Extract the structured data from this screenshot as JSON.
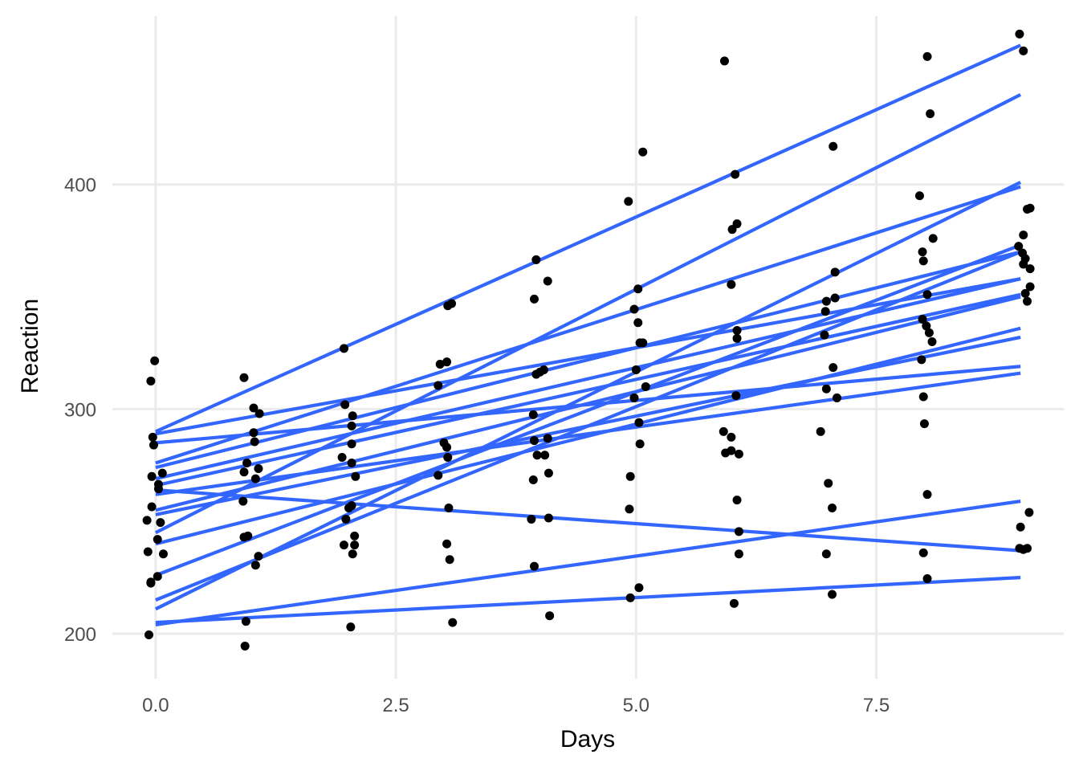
{
  "chart_data": {
    "type": "scatter",
    "xlabel": "Days",
    "ylabel": "Reaction",
    "xlim": [
      -0.45,
      9.45
    ],
    "ylim": [
      180,
      475
    ],
    "x_ticks": [
      0.0,
      2.5,
      5.0,
      7.5
    ],
    "x_tick_labels": [
      "0.0",
      "2.5",
      "5.0",
      "7.5"
    ],
    "y_ticks": [
      200,
      300,
      400
    ],
    "y_tick_labels": [
      "200",
      "300",
      "400"
    ],
    "grid": true,
    "legend": "none",
    "colors": {
      "points": "#000000",
      "lines": "#3366ff",
      "grid": "#ebebeb"
    },
    "points": [
      {
        "x": -0.07,
        "y": 199.5
      },
      {
        "x": -0.08,
        "y": 236.5
      },
      {
        "x": -0.05,
        "y": 223.0
      },
      {
        "x": -0.05,
        "y": 222.5
      },
      {
        "x": 0.02,
        "y": 225.5
      },
      {
        "x": -0.09,
        "y": 250.5
      },
      {
        "x": 0.05,
        "y": 249.5
      },
      {
        "x": 0.08,
        "y": 235.5
      },
      {
        "x": -0.04,
        "y": 256.5
      },
      {
        "x": 0.02,
        "y": 242.0
      },
      {
        "x": 0.03,
        "y": 264.5
      },
      {
        "x": 0.03,
        "y": 266.5
      },
      {
        "x": -0.04,
        "y": 270.0
      },
      {
        "x": 0.07,
        "y": 271.5
      },
      {
        "x": -0.03,
        "y": 287.5
      },
      {
        "x": -0.02,
        "y": 284.0
      },
      {
        "x": -0.05,
        "y": 312.5
      },
      {
        "x": -0.01,
        "y": 321.5
      },
      {
        "x": 0.93,
        "y": 194.5
      },
      {
        "x": 0.94,
        "y": 205.5
      },
      {
        "x": 1.04,
        "y": 230.5
      },
      {
        "x": 1.07,
        "y": 234.5
      },
      {
        "x": 0.92,
        "y": 243.0
      },
      {
        "x": 0.96,
        "y": 243.5
      },
      {
        "x": 0.91,
        "y": 259.0
      },
      {
        "x": 1.04,
        "y": 269.0
      },
      {
        "x": 0.92,
        "y": 272.0
      },
      {
        "x": 1.07,
        "y": 273.5
      },
      {
        "x": 0.95,
        "y": 276.0
      },
      {
        "x": 1.03,
        "y": 285.5
      },
      {
        "x": 1.02,
        "y": 289.5
      },
      {
        "x": 1.02,
        "y": 300.5
      },
      {
        "x": 1.08,
        "y": 298.0
      },
      {
        "x": 0.92,
        "y": 314.0
      },
      {
        "x": 2.03,
        "y": 203.0
      },
      {
        "x": 1.96,
        "y": 239.5
      },
      {
        "x": 2.05,
        "y": 235.5
      },
      {
        "x": 2.07,
        "y": 239.5
      },
      {
        "x": 2.07,
        "y": 243.5
      },
      {
        "x": 1.98,
        "y": 251.0
      },
      {
        "x": 2.01,
        "y": 256.0
      },
      {
        "x": 2.04,
        "y": 257.0
      },
      {
        "x": 2.08,
        "y": 270.0
      },
      {
        "x": 2.04,
        "y": 276.0
      },
      {
        "x": 1.94,
        "y": 278.5
      },
      {
        "x": 2.04,
        "y": 284.5
      },
      {
        "x": 2.04,
        "y": 292.5
      },
      {
        "x": 2.05,
        "y": 297.0
      },
      {
        "x": 1.97,
        "y": 302.0
      },
      {
        "x": 1.96,
        "y": 327.0
      },
      {
        "x": 3.09,
        "y": 205.0
      },
      {
        "x": 3.06,
        "y": 233.0
      },
      {
        "x": 3.03,
        "y": 240.0
      },
      {
        "x": 3.05,
        "y": 256.0
      },
      {
        "x": 2.94,
        "y": 270.5
      },
      {
        "x": 3.04,
        "y": 278.5
      },
      {
        "x": 3.03,
        "y": 283.0
      },
      {
        "x": 3.0,
        "y": 285.0
      },
      {
        "x": 2.94,
        "y": 310.5
      },
      {
        "x": 2.96,
        "y": 320.0
      },
      {
        "x": 3.03,
        "y": 321.0
      },
      {
        "x": 3.04,
        "y": 346.0
      },
      {
        "x": 3.08,
        "y": 347.0
      },
      {
        "x": 4.1,
        "y": 208.0
      },
      {
        "x": 3.94,
        "y": 230.0
      },
      {
        "x": 3.91,
        "y": 251.0
      },
      {
        "x": 4.09,
        "y": 251.5
      },
      {
        "x": 3.93,
        "y": 268.5
      },
      {
        "x": 4.09,
        "y": 271.5
      },
      {
        "x": 3.97,
        "y": 279.5
      },
      {
        "x": 4.05,
        "y": 279.5
      },
      {
        "x": 3.94,
        "y": 286.0
      },
      {
        "x": 4.08,
        "y": 287.0
      },
      {
        "x": 3.93,
        "y": 297.5
      },
      {
        "x": 3.96,
        "y": 315.5
      },
      {
        "x": 4.0,
        "y": 316.5
      },
      {
        "x": 4.04,
        "y": 317.5
      },
      {
        "x": 3.94,
        "y": 349.0
      },
      {
        "x": 4.08,
        "y": 357.0
      },
      {
        "x": 3.96,
        "y": 366.5
      },
      {
        "x": 4.94,
        "y": 216.0
      },
      {
        "x": 5.03,
        "y": 220.5
      },
      {
        "x": 4.93,
        "y": 255.5
      },
      {
        "x": 4.94,
        "y": 270.0
      },
      {
        "x": 5.04,
        "y": 284.5
      },
      {
        "x": 5.03,
        "y": 294.0
      },
      {
        "x": 4.98,
        "y": 305.0
      },
      {
        "x": 5.1,
        "y": 310.0
      },
      {
        "x": 5.0,
        "y": 317.5
      },
      {
        "x": 5.04,
        "y": 329.5
      },
      {
        "x": 5.07,
        "y": 329.5
      },
      {
        "x": 5.02,
        "y": 338.5
      },
      {
        "x": 4.98,
        "y": 344.5
      },
      {
        "x": 5.02,
        "y": 353.5
      },
      {
        "x": 4.92,
        "y": 392.5
      },
      {
        "x": 5.07,
        "y": 414.5
      },
      {
        "x": 6.02,
        "y": 213.5
      },
      {
        "x": 6.07,
        "y": 235.5
      },
      {
        "x": 6.07,
        "y": 245.5
      },
      {
        "x": 6.05,
        "y": 259.5
      },
      {
        "x": 6.07,
        "y": 280.0
      },
      {
        "x": 5.93,
        "y": 280.5
      },
      {
        "x": 5.99,
        "y": 281.5
      },
      {
        "x": 5.99,
        "y": 287.5
      },
      {
        "x": 5.91,
        "y": 290.0
      },
      {
        "x": 6.04,
        "y": 306.0
      },
      {
        "x": 6.05,
        "y": 331.5
      },
      {
        "x": 6.05,
        "y": 335.0
      },
      {
        "x": 5.99,
        "y": 355.5
      },
      {
        "x": 6.0,
        "y": 380.0
      },
      {
        "x": 6.05,
        "y": 382.5
      },
      {
        "x": 6.03,
        "y": 404.5
      },
      {
        "x": 5.92,
        "y": 455.0
      },
      {
        "x": 7.04,
        "y": 217.5
      },
      {
        "x": 6.98,
        "y": 235.5
      },
      {
        "x": 7.04,
        "y": 256.0
      },
      {
        "x": 7.0,
        "y": 267.0
      },
      {
        "x": 6.92,
        "y": 290.0
      },
      {
        "x": 7.09,
        "y": 305.0
      },
      {
        "x": 6.98,
        "y": 309.0
      },
      {
        "x": 7.05,
        "y": 318.5
      },
      {
        "x": 6.96,
        "y": 333.0
      },
      {
        "x": 6.97,
        "y": 343.5
      },
      {
        "x": 6.98,
        "y": 348.0
      },
      {
        "x": 7.07,
        "y": 349.5
      },
      {
        "x": 7.07,
        "y": 361.0
      },
      {
        "x": 7.05,
        "y": 417.0
      },
      {
        "x": 8.03,
        "y": 224.5
      },
      {
        "x": 7.99,
        "y": 236.0
      },
      {
        "x": 8.03,
        "y": 262.0
      },
      {
        "x": 8.0,
        "y": 293.5
      },
      {
        "x": 7.99,
        "y": 305.5
      },
      {
        "x": 7.97,
        "y": 322.0
      },
      {
        "x": 8.08,
        "y": 330.0
      },
      {
        "x": 8.05,
        "y": 334.0
      },
      {
        "x": 8.02,
        "y": 337.0
      },
      {
        "x": 7.98,
        "y": 340.0
      },
      {
        "x": 8.03,
        "y": 351.0
      },
      {
        "x": 7.99,
        "y": 366.0
      },
      {
        "x": 7.98,
        "y": 370.0
      },
      {
        "x": 8.09,
        "y": 376.0
      },
      {
        "x": 7.95,
        "y": 395.0
      },
      {
        "x": 8.06,
        "y": 431.5
      },
      {
        "x": 8.03,
        "y": 457.0
      },
      {
        "x": 9.03,
        "y": 237.5
      },
      {
        "x": 9.07,
        "y": 238.0
      },
      {
        "x": 8.99,
        "y": 238.0
      },
      {
        "x": 9.0,
        "y": 247.5
      },
      {
        "x": 9.09,
        "y": 254.0
      },
      {
        "x": 9.07,
        "y": 348.0
      },
      {
        "x": 9.05,
        "y": 351.5
      },
      {
        "x": 9.1,
        "y": 354.5
      },
      {
        "x": 9.1,
        "y": 362.5
      },
      {
        "x": 9.03,
        "y": 364.5
      },
      {
        "x": 9.05,
        "y": 367.0
      },
      {
        "x": 9.02,
        "y": 369.5
      },
      {
        "x": 8.98,
        "y": 372.5
      },
      {
        "x": 9.03,
        "y": 377.5
      },
      {
        "x": 9.07,
        "y": 389.0
      },
      {
        "x": 9.1,
        "y": 389.5
      },
      {
        "x": 9.03,
        "y": 459.5
      },
      {
        "x": 8.99,
        "y": 467.0
      }
    ],
    "series": [
      {
        "x": [
          0,
          9
        ],
        "y": [
          290.0,
          462.0
        ]
      },
      {
        "x": [
          0,
          9
        ],
        "y": [
          245.0,
          440.0
        ]
      },
      {
        "x": [
          0,
          9
        ],
        "y": [
          211.0,
          401.0
        ]
      },
      {
        "x": [
          0,
          9
        ],
        "y": [
          276.0,
          399.0
        ]
      },
      {
        "x": [
          0,
          9
        ],
        "y": [
          226.0,
          373.0
        ]
      },
      {
        "x": [
          0,
          9
        ],
        "y": [
          215.0,
          370.0
        ]
      },
      {
        "x": [
          0,
          9
        ],
        "y": [
          289.0,
          358.0
        ]
      },
      {
        "x": [
          0,
          9
        ],
        "y": [
          269.0,
          358.0
        ]
      },
      {
        "x": [
          0,
          9
        ],
        "y": [
          266.0,
          351.0
        ]
      },
      {
        "x": [
          0,
          9
        ],
        "y": [
          255.0,
          350.0
        ]
      },
      {
        "x": [
          0,
          9
        ],
        "y": [
          240.0,
          336.0
        ]
      },
      {
        "x": [
          0,
          9
        ],
        "y": [
          253.0,
          332.0
        ]
      },
      {
        "x": [
          0,
          9
        ],
        "y": [
          285.0,
          319.0
        ]
      },
      {
        "x": [
          0,
          9
        ],
        "y": [
          262.0,
          316.0
        ]
      },
      {
        "x": [
          0,
          9
        ],
        "y": [
          264.0,
          237.0
        ]
      },
      {
        "x": [
          0,
          9
        ],
        "y": [
          204.0,
          259.0
        ]
      },
      {
        "x": [
          0,
          9
        ],
        "y": [
          205.0,
          225.0
        ]
      },
      {
        "x": [
          0,
          9
        ],
        "y": [
          274.0,
          370.0
        ]
      }
    ]
  }
}
